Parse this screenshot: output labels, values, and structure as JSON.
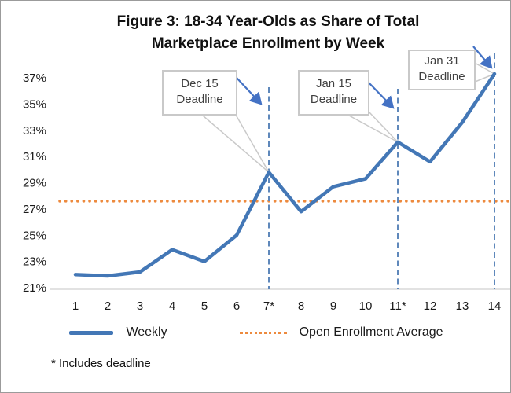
{
  "figure": {
    "title_line1": "Figure 3: 18-34 Year-Olds as Share of Total",
    "title_line2": "Marketplace Enrollment by Week",
    "footnote": "* Includes deadline"
  },
  "legend": {
    "weekly_label": "Weekly",
    "average_label": "Open Enrollment Average"
  },
  "annotations": [
    {
      "label_line1": "Dec 15",
      "label_line2": "Deadline",
      "week": 7
    },
    {
      "label_line1": "Jan 15",
      "label_line2": "Deadline",
      "week": 11
    },
    {
      "label_line1": "Jan 31",
      "label_line2": "Deadline",
      "week": 14
    }
  ],
  "colors": {
    "weekly": "#4377b6",
    "average": "#ED8A3E",
    "deadline": "#5f88bb",
    "annotation_arrow": "#4472c4",
    "callout_border": "#c9c9c9",
    "axis_line": "#d9d9d9"
  },
  "chart_data": {
    "type": "line",
    "title": "Figure 3: 18-34 Year-Olds as Share of Total Marketplace Enrollment by Week",
    "xlabel": "",
    "ylabel": "",
    "categories": [
      "1",
      "2",
      "3",
      "4",
      "5",
      "6",
      "7*",
      "8",
      "9",
      "10",
      "11*",
      "12",
      "13",
      "14"
    ],
    "series": [
      {
        "name": "Weekly",
        "values": [
          22.0,
          21.9,
          22.2,
          23.9,
          23.0,
          25.0,
          29.8,
          26.8,
          28.7,
          29.3,
          32.1,
          30.6,
          33.6,
          37.3
        ]
      }
    ],
    "average_line": {
      "name": "Open Enrollment Average",
      "value": 27.6,
      "style": "dotted"
    },
    "deadline_weeks": [
      7,
      11,
      14
    ],
    "deadline_line_style": "dashed",
    "ytick_labels": [
      "21%",
      "23%",
      "25%",
      "27%",
      "29%",
      "31%",
      "33%",
      "35%",
      "37%"
    ],
    "ylim": [
      21,
      38
    ],
    "grid": false,
    "legend_position": "bottom",
    "footnote": "* Includes deadline"
  }
}
